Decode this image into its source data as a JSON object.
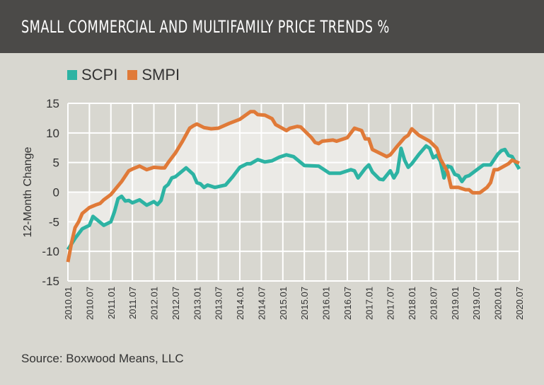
{
  "header": {
    "title": "SMALL COMMERCIAL AND MULTIFAMILY PRICE TRENDS %"
  },
  "source": "Source: Boxwood Means, LLC",
  "chart_data": {
    "type": "line",
    "title": "SMALL COMMERCIAL AND MULTIFAMILY PRICE TRENDS %",
    "ylabel": "12-Month Change",
    "xlabel": "",
    "ylim": [
      -15,
      15
    ],
    "yticks": [
      "15",
      "10",
      "5",
      "0",
      "-5",
      "-10",
      "-15"
    ],
    "xticks": [
      "2010.01",
      "2010.07",
      "2011.01",
      "2011.07",
      "2012.01",
      "2012.07",
      "2013.01",
      "2013.07",
      "2014.01",
      "2014.07",
      "2015.01",
      "2015.07",
      "2016.01",
      "2016.07",
      "2017.01",
      "2017.07",
      "2018.01",
      "2018.07",
      "2019.01",
      "2019.07",
      "2020.01",
      "2020.07"
    ],
    "grid": true,
    "legend_position": "top-left",
    "series": [
      {
        "name": "SCPI",
        "color": "#2db3a3",
        "points": [
          [
            "2010.01",
            -9.7
          ],
          [
            "2010.03",
            -7.8
          ],
          [
            "2010.05",
            -6.2
          ],
          [
            "2010.07",
            -5.6
          ],
          [
            "2010.08",
            -4.1
          ],
          [
            "2010.11",
            -5.6
          ],
          [
            "2011.01",
            -5.0
          ],
          [
            "2011.02",
            -3.3
          ],
          [
            "2011.03",
            -1.1
          ],
          [
            "2011.04",
            -0.7
          ],
          [
            "2011.05",
            -1.5
          ],
          [
            "2011.06",
            -1.4
          ],
          [
            "2011.07",
            -1.8
          ],
          [
            "2011.09",
            -1.3
          ],
          [
            "2011.11",
            -2.2
          ],
          [
            "2012.01",
            -1.6
          ],
          [
            "2012.02",
            -2.1
          ],
          [
            "2012.03",
            -1.4
          ],
          [
            "2012.04",
            0.8
          ],
          [
            "2012.05",
            1.3
          ],
          [
            "2012.06",
            2.4
          ],
          [
            "2012.07",
            2.6
          ],
          [
            "2012.10",
            4.1
          ],
          [
            "2012.12",
            3.0
          ],
          [
            "2013.01",
            1.6
          ],
          [
            "2013.02",
            1.4
          ],
          [
            "2013.03",
            0.8
          ],
          [
            "2013.04",
            1.2
          ],
          [
            "2013.06",
            0.8
          ],
          [
            "2013.09",
            1.2
          ],
          [
            "2013.11",
            2.6
          ],
          [
            "2014.01",
            4.2
          ],
          [
            "2014.03",
            4.8
          ],
          [
            "2014.04",
            4.8
          ],
          [
            "2014.06",
            5.5
          ],
          [
            "2014.08",
            5.1
          ],
          [
            "2014.10",
            5.3
          ],
          [
            "2014.12",
            5.9
          ],
          [
            "2015.02",
            6.3
          ],
          [
            "2015.04",
            6.0
          ],
          [
            "2015.07",
            4.5
          ],
          [
            "2015.11",
            4.4
          ],
          [
            "2016.02",
            3.2
          ],
          [
            "2016.05",
            3.2
          ],
          [
            "2016.08",
            3.8
          ],
          [
            "2016.09",
            3.6
          ],
          [
            "2016.10",
            2.4
          ],
          [
            "2016.12",
            4.0
          ],
          [
            "2017.01",
            4.6
          ],
          [
            "2017.02",
            3.4
          ],
          [
            "2017.04",
            2.2
          ],
          [
            "2017.05",
            2.1
          ],
          [
            "2017.07",
            3.6
          ],
          [
            "2017.08",
            2.4
          ],
          [
            "2017.09",
            3.4
          ],
          [
            "2017.10",
            7.4
          ],
          [
            "2017.11",
            5.4
          ],
          [
            "2017.12",
            4.2
          ],
          [
            "2018.01",
            4.8
          ],
          [
            "2018.03",
            6.4
          ],
          [
            "2018.05",
            7.8
          ],
          [
            "2018.06",
            7.4
          ],
          [
            "2018.07",
            5.8
          ],
          [
            "2018.08",
            6.2
          ],
          [
            "2018.09",
            5.2
          ],
          [
            "2018.10",
            2.4
          ],
          [
            "2018.11",
            4.4
          ],
          [
            "2018.12",
            4.2
          ],
          [
            "2019.01",
            3.0
          ],
          [
            "2019.02",
            2.8
          ],
          [
            "2019.03",
            1.8
          ],
          [
            "2019.04",
            2.6
          ],
          [
            "2019.05",
            2.8
          ],
          [
            "2019.07",
            3.7
          ],
          [
            "2019.09",
            4.6
          ],
          [
            "2019.11",
            4.6
          ],
          [
            "2020.01",
            6.4
          ],
          [
            "2020.02",
            7.0
          ],
          [
            "2020.03",
            7.2
          ],
          [
            "2020.04",
            6.2
          ],
          [
            "2020.05",
            6.0
          ],
          [
            "2020.07",
            3.9
          ]
        ]
      },
      {
        "name": "SMPI",
        "color": "#e07a38",
        "points": [
          [
            "2010.01",
            -11.8
          ],
          [
            "2010.02",
            -8.6
          ],
          [
            "2010.03",
            -6.0
          ],
          [
            "2010.04",
            -5.0
          ],
          [
            "2010.05",
            -3.6
          ],
          [
            "2010.07",
            -2.6
          ],
          [
            "2010.09",
            -2.1
          ],
          [
            "2010.10",
            -1.9
          ],
          [
            "2010.11",
            -1.3
          ],
          [
            "2011.01",
            -0.4
          ],
          [
            "2011.04",
            1.8
          ],
          [
            "2011.06",
            3.6
          ],
          [
            "2011.07",
            3.9
          ],
          [
            "2011.09",
            4.4
          ],
          [
            "2011.11",
            3.8
          ],
          [
            "2012.01",
            4.2
          ],
          [
            "2012.03",
            4.1
          ],
          [
            "2012.04",
            4.1
          ],
          [
            "2012.05",
            5.0
          ],
          [
            "2012.07",
            6.6
          ],
          [
            "2012.09",
            8.6
          ],
          [
            "2012.11",
            10.8
          ],
          [
            "2012.12",
            11.2
          ],
          [
            "2013.01",
            11.5
          ],
          [
            "2013.03",
            10.9
          ],
          [
            "2013.05",
            10.7
          ],
          [
            "2013.07",
            10.8
          ],
          [
            "2013.10",
            11.6
          ],
          [
            "2014.01",
            12.3
          ],
          [
            "2014.04",
            13.6
          ],
          [
            "2014.05",
            13.6
          ],
          [
            "2014.06",
            13.1
          ],
          [
            "2014.08",
            13.0
          ],
          [
            "2014.10",
            12.4
          ],
          [
            "2014.11",
            11.4
          ],
          [
            "2015.02",
            10.4
          ],
          [
            "2015.03",
            10.8
          ],
          [
            "2015.05",
            11.1
          ],
          [
            "2015.06",
            11.0
          ],
          [
            "2015.09",
            9.2
          ],
          [
            "2015.10",
            8.4
          ],
          [
            "2015.11",
            8.2
          ],
          [
            "2015.12",
            8.6
          ],
          [
            "2016.03",
            8.8
          ],
          [
            "2016.04",
            8.6
          ],
          [
            "2016.07",
            9.2
          ],
          [
            "2016.09",
            10.8
          ],
          [
            "2016.10",
            10.6
          ],
          [
            "2016.11",
            10.4
          ],
          [
            "2016.12",
            9.0
          ],
          [
            "2017.01",
            9.0
          ],
          [
            "2017.02",
            7.2
          ],
          [
            "2017.06",
            6.0
          ],
          [
            "2017.07",
            6.3
          ],
          [
            "2017.09",
            7.8
          ],
          [
            "2017.11",
            9.2
          ],
          [
            "2017.12",
            9.6
          ],
          [
            "2018.01",
            10.7
          ],
          [
            "2018.03",
            9.6
          ],
          [
            "2018.06",
            8.6
          ],
          [
            "2018.08",
            7.4
          ],
          [
            "2018.09",
            5.6
          ],
          [
            "2018.11",
            3.4
          ],
          [
            "2018.12",
            0.8
          ],
          [
            "2019.02",
            0.8
          ],
          [
            "2019.04",
            0.4
          ],
          [
            "2019.05",
            0.4
          ],
          [
            "2019.06",
            -0.1
          ],
          [
            "2019.08",
            -0.1
          ],
          [
            "2019.10",
            0.8
          ],
          [
            "2019.11",
            1.6
          ],
          [
            "2019.12",
            3.8
          ],
          [
            "2020.01",
            3.8
          ],
          [
            "2020.04",
            4.8
          ],
          [
            "2020.05",
            5.4
          ],
          [
            "2020.07",
            4.9
          ]
        ]
      }
    ]
  }
}
